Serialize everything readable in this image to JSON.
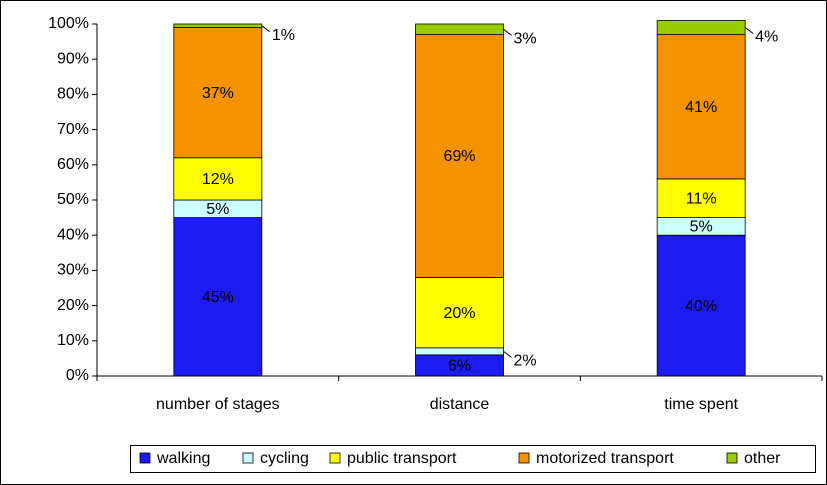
{
  "chart_data": {
    "type": "stacked_bar",
    "categories": [
      "number of stages",
      "distance",
      "time spent"
    ],
    "series": [
      {
        "name": "walking",
        "color": "#1c1cf0",
        "values": [
          45,
          6,
          40
        ],
        "value_labels": [
          "45%",
          "6%",
          "40%"
        ]
      },
      {
        "name": "cycling",
        "color": "#ccffff",
        "values": [
          5,
          2,
          5
        ],
        "value_labels": [
          "5%",
          "2%",
          "5%"
        ]
      },
      {
        "name": "public transport",
        "color": "#ffff00",
        "values": [
          12,
          20,
          11
        ],
        "value_labels": [
          "12%",
          "20%",
          "11%"
        ]
      },
      {
        "name": "motorized transport",
        "color": "#f59200",
        "values": [
          37,
          69,
          41
        ],
        "value_labels": [
          "37%",
          "69%",
          "41%"
        ]
      },
      {
        "name": "other",
        "color": "#99cc00",
        "values": [
          1,
          3,
          4
        ],
        "value_labels": [
          "1%",
          "3%",
          "4%"
        ]
      }
    ],
    "ylim": [
      0,
      100
    ],
    "yticks": [
      {
        "value": 0,
        "label": "0%"
      },
      {
        "value": 10,
        "label": "10%"
      },
      {
        "value": 20,
        "label": "20%"
      },
      {
        "value": 30,
        "label": "30%"
      },
      {
        "value": 40,
        "label": "40%"
      },
      {
        "value": 50,
        "label": "50%"
      },
      {
        "value": 60,
        "label": "60%"
      },
      {
        "value": 70,
        "label": "70%"
      },
      {
        "value": 80,
        "label": "80%"
      },
      {
        "value": 90,
        "label": "90%"
      },
      {
        "value": 100,
        "label": "100%"
      }
    ],
    "legend": "bottom"
  }
}
